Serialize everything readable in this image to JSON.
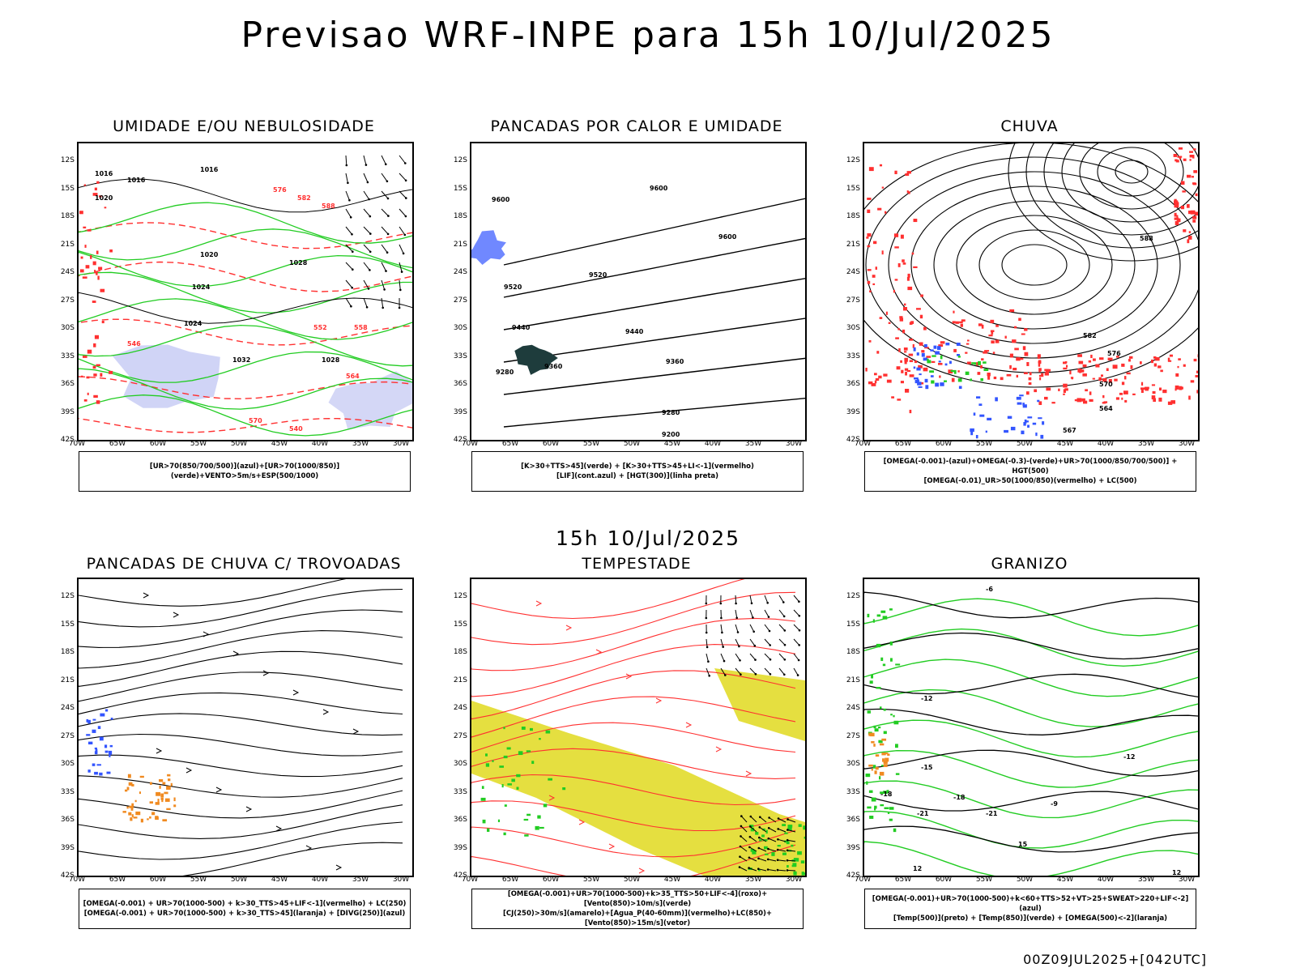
{
  "title": "Previsao WRF-INPE  para 15h 10/Jul/2025",
  "mid_time": "15h 10/Jul/2025",
  "footer": "00Z09JUL2025+[042UTC]",
  "lat_labels": [
    "12S",
    "15S",
    "18S",
    "21S",
    "24S",
    "27S",
    "30S",
    "33S",
    "36S",
    "39S",
    "42S"
  ],
  "lon_labels": [
    "70W",
    "65W",
    "60W",
    "55W",
    "50W",
    "45W",
    "40W",
    "35W",
    "30W"
  ],
  "panels": [
    {
      "title": "UMIDADE E/OU NEBULOSIDADE",
      "legend": [
        "[UR>70(850/700/500)](azul)+[UR>70(1000/850)](verde)+VENTO>5m/s+ESP(500/1000)"
      ]
    },
    {
      "title": "PANCADAS POR CALOR E UMIDADE",
      "legend": [
        "[K>30+TTS>45](verde) + [K>30+TTS>45+LI<-1](vermelho)",
        "[LIF](cont.azul) + [HGT(300)](linha preta)"
      ]
    },
    {
      "title": "CHUVA",
      "legend": [
        "[OMEGA(-0.001)-(azul)+OMEGA(-0.3)-(verde)+UR>70(1000/850/700/500)] + HGT(500)",
        "[OMEGA(-0.01)_UR>50(1000/850)(vermelho) + LC(500)"
      ]
    },
    {
      "title": "PANCADAS DE CHUVA C/ TROVOADAS",
      "legend": [
        "[OMEGA(-0.001) + UR>70(1000-500) + k>30_TTS>45+LIF<-1](vermelho) + LC(250)",
        "[OMEGA(-0.001) + UR>70(1000-500) + k>30_TTS>45](laranja) + [DIVG(250)](azul)"
      ]
    },
    {
      "title": "TEMPESTADE",
      "legend": [
        "[OMEGA(-0.001)+UR>70(1000-500)+k>35_TTS>50+LIF<-4](roxo)+[Vento(850)>10m/s](verde)",
        "[CJ(250)>30m/s](amarelo)+[Agua_P(40-60mm)](vermelho)+LC(850)+[Vento(850)>15m/s](vetor)"
      ]
    },
    {
      "title": "GRANIZO",
      "legend": [
        "[OMEGA(-0.001)+UR>70(1000-500)+k<60+TTS>52+VT>25+SWEAT>220+LIF<-2](azul)",
        "[Temp(500)](preto) + [Temp(850)](verde) + [OMEGA(500)<-2](laranja)"
      ]
    }
  ],
  "panel_labels": {
    "p1": [
      "1016",
      "1016",
      "1016",
      "1020",
      "1020",
      "1024",
      "1024",
      "1028",
      "1028",
      "1032",
      "570",
      "576",
      "582",
      "588",
      "546",
      "552",
      "558",
      "564",
      "540"
    ],
    "p2": [
      "9600",
      "9600",
      "9600",
      "9520",
      "9520",
      "9440",
      "9440",
      "9360",
      "9360",
      "9280",
      "9280",
      "9200"
    ],
    "p3": [
      "588",
      "582",
      "576",
      "570",
      "564",
      "567"
    ],
    "p6": [
      "-6",
      "-12",
      "-12",
      "-15",
      "-18",
      "-18",
      "-21",
      "-21",
      "12",
      "12",
      "15",
      "-9"
    ]
  },
  "colors": {
    "coast": "#000000",
    "green": "#22cc22",
    "red": "#ff3030",
    "blue": "#3355ff",
    "lavender": "#aab0ee",
    "yellow": "#e5df40",
    "darkteal": "#1e3c3c",
    "orange": "#f08a20"
  }
}
